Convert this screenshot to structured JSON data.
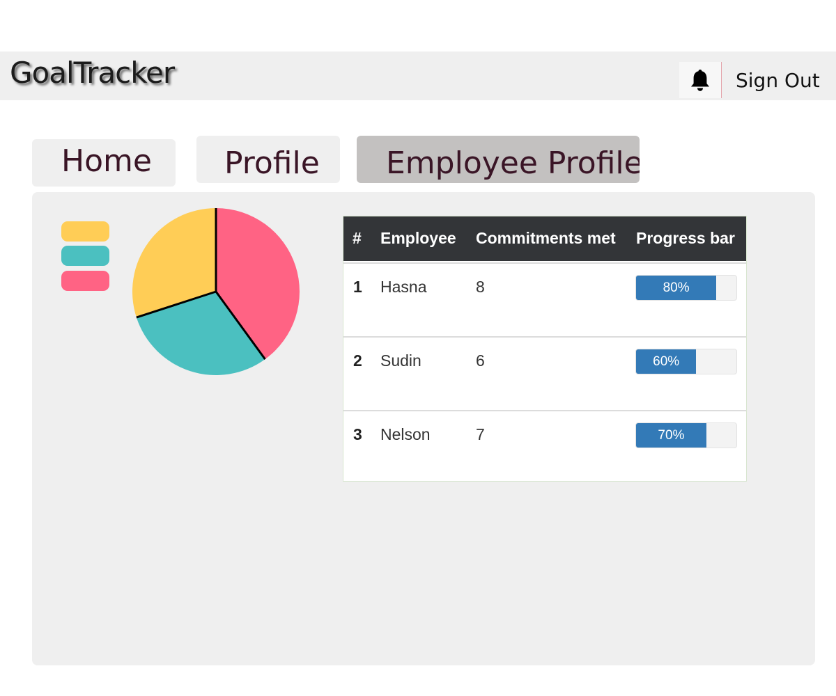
{
  "app": {
    "title": "GoalTracker"
  },
  "header": {
    "notification_icon": "bell-icon",
    "sign_out_label": "Sign Out"
  },
  "tabs": [
    {
      "label": "Home",
      "active": false
    },
    {
      "label": "Profile",
      "active": false
    },
    {
      "label": "Employee Profiles",
      "active": true
    }
  ],
  "legend_colors": [
    "#ffcd56",
    "#4bc0c0",
    "#ff6384"
  ],
  "chart_data": {
    "type": "pie",
    "values": [
      40,
      30,
      30
    ],
    "colors": [
      "#ff6384",
      "#4bc0c0",
      "#ffcd56"
    ]
  },
  "table": {
    "columns": [
      "#",
      "Employee",
      "Commitments met",
      "Progress bar"
    ],
    "rows": [
      {
        "num": "1",
        "employee": "Hasna",
        "commitments": "8",
        "progress": 80,
        "progress_label": "80%"
      },
      {
        "num": "2",
        "employee": "Sudin",
        "commitments": "6",
        "progress": 60,
        "progress_label": "60%"
      },
      {
        "num": "3",
        "employee": "Nelson",
        "commitments": "7",
        "progress": 70,
        "progress_label": "70%"
      }
    ]
  }
}
